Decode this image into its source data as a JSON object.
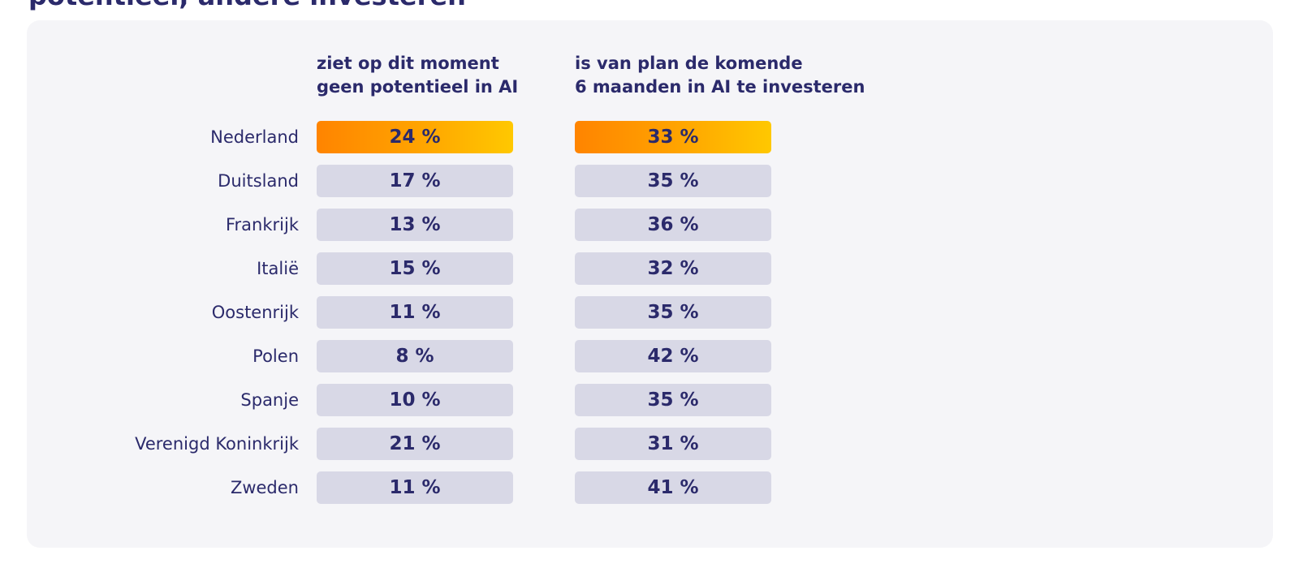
{
  "heading": "potentieel, andere investeren",
  "chart_data": {
    "type": "table",
    "columns": [
      [
        "ziet op dit moment",
        "geen potentieel in AI"
      ],
      [
        "is van plan de komende",
        "6 maanden in AI te investeren"
      ]
    ],
    "highlight_row": "Nederland",
    "rows": [
      {
        "country": "Nederland",
        "values": [
          "24 %",
          "33 %"
        ]
      },
      {
        "country": "Duitsland",
        "values": [
          "17 %",
          "35 %"
        ]
      },
      {
        "country": "Frankrijk",
        "values": [
          "13 %",
          "36 %"
        ]
      },
      {
        "country": "Italië",
        "values": [
          "15 %",
          "32 %"
        ]
      },
      {
        "country": "Oostenrijk",
        "values": [
          "11 %",
          "35 %"
        ]
      },
      {
        "country": "Polen",
        "values": [
          "8 %",
          "42 %"
        ]
      },
      {
        "country": "Spanje",
        "values": [
          "10 %",
          "35 %"
        ]
      },
      {
        "country": "Verenigd Koninkrijk",
        "values": [
          "21 %",
          "31 %"
        ]
      },
      {
        "country": "Zweden",
        "values": [
          "11 %",
          "41 %"
        ]
      }
    ]
  },
  "colors": {
    "text": "#2b2a6b",
    "pill": "#d8d8e6",
    "card": "#f5f5f8",
    "highlight_start": "#ff8400",
    "highlight_end": "#ffc800"
  }
}
